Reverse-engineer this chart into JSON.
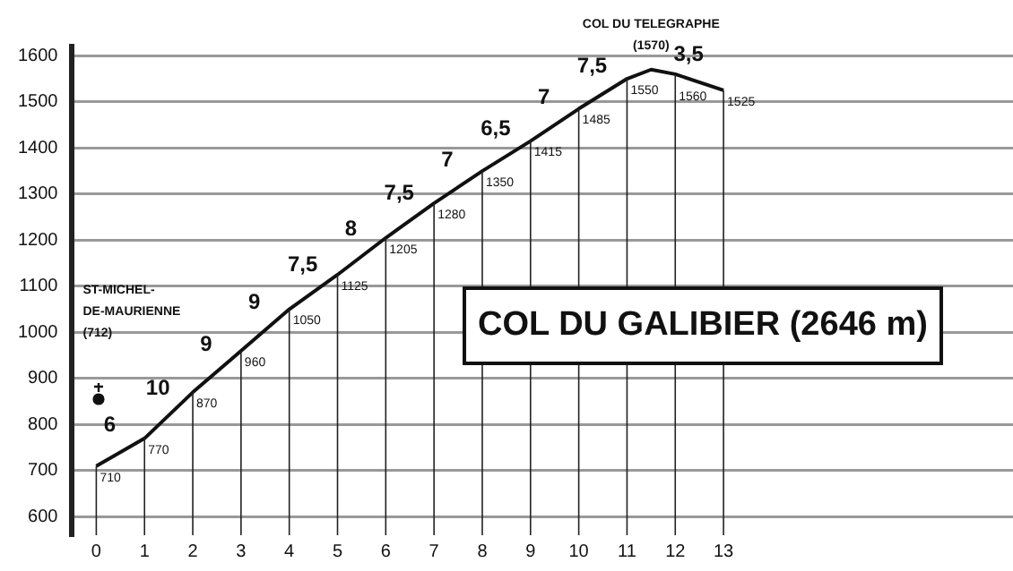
{
  "chart_data": {
    "type": "line",
    "title": "COL DU GALIBIER (2646 m)",
    "x": [
      0,
      1,
      2,
      3,
      4,
      5,
      6,
      7,
      8,
      9,
      10,
      11,
      11.5,
      12,
      13
    ],
    "series": [
      {
        "color": "#111111",
        "values": [
          710,
          770,
          870,
          960,
          1050,
          1125,
          1205,
          1280,
          1350,
          1415,
          1485,
          1550,
          1570,
          1560,
          1525
        ],
        "value_labels": [
          "710",
          "770",
          "870",
          "960",
          "1050",
          "1125",
          "1205",
          "1280",
          "1350",
          "1415",
          "1485",
          "1550",
          null,
          "1560",
          "1525"
        ]
      }
    ],
    "xlim": [
      -0.5,
      19
    ],
    "xticks": [
      0,
      1,
      2,
      3,
      4,
      5,
      6,
      7,
      8,
      9,
      10,
      11,
      12,
      13
    ],
    "ylim": [
      560,
      1620
    ],
    "yticks": [
      600,
      700,
      800,
      900,
      1000,
      1100,
      1200,
      1300,
      1400,
      1500,
      1600
    ],
    "grid": true,
    "legend": false,
    "marker": "none",
    "line_style": "solid",
    "annotations": [
      {
        "text": "6",
        "x": 0.5,
        "y": 740
      },
      {
        "text": "10",
        "x": 1.5,
        "y": 820
      },
      {
        "text": "9",
        "x": 2.5,
        "y": 915
      },
      {
        "text": "9",
        "x": 3.5,
        "y": 1005
      },
      {
        "text": "7,5",
        "x": 4.5,
        "y": 1088
      },
      {
        "text": "8",
        "x": 5.5,
        "y": 1165
      },
      {
        "text": "7,5",
        "x": 6.5,
        "y": 1243
      },
      {
        "text": "7",
        "x": 7.5,
        "y": 1315
      },
      {
        "text": "6,5",
        "x": 8.5,
        "y": 1383
      },
      {
        "text": "7",
        "x": 9.5,
        "y": 1450
      },
      {
        "text": "7,5",
        "x": 10.5,
        "y": 1518
      },
      {
        "text": "3,5",
        "x": 12.5,
        "y": 1543
      },
      "ST-MICHEL-\nDE-MAURIENNE\n(712)",
      {
        "text": "COL DU TELEGRAPHE\n(1570)",
        "x": 11.5,
        "y": 1570
      }
    ]
  }
}
